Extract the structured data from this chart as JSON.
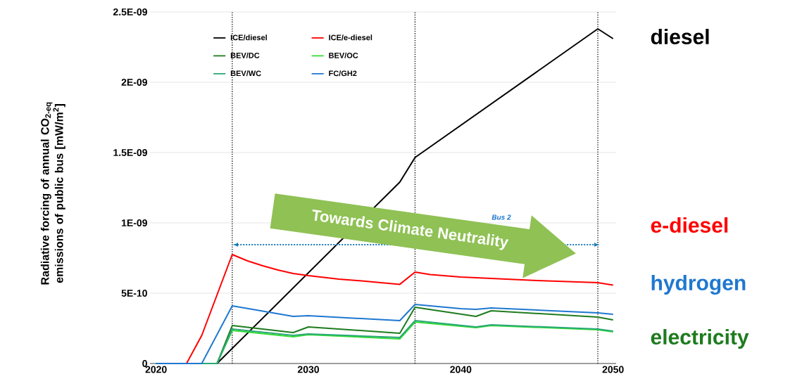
{
  "chart_data": {
    "type": "line",
    "ylabel": "Radiative forcing of annual CO$_{2-eq}$ emissions of public bus [mW/m$^{2}$]",
    "xlim": [
      2019.6,
      2050.2
    ],
    "xticks": [
      2020,
      2030,
      2040,
      2050
    ],
    "ylim": [
      0,
      2.5e-09
    ],
    "yticks": [
      {
        "value": 0,
        "label": "0"
      },
      {
        "value": 5e-10,
        "label": "5E-10"
      },
      {
        "value": 1e-09,
        "label": "1E-09"
      },
      {
        "value": 1.5e-09,
        "label": "1.5E-09"
      },
      {
        "value": 2e-09,
        "label": "2E-09"
      },
      {
        "value": 2.5e-09,
        "label": "2.5E-09"
      }
    ],
    "grid": "y",
    "legend": "top",
    "marker": "none",
    "line_style": "solid",
    "series": [
      {
        "name": "ICE/diesel",
        "color": "#000000",
        "x": [
          2020,
          2024,
          2036,
          2037,
          2049,
          2050
        ],
        "values": [
          0,
          0,
          1.29e-09,
          1.465e-09,
          2.38e-09,
          2.31e-09
        ]
      },
      {
        "name": "ICE/e-diesel",
        "color": "#ff0000",
        "x": [
          2020,
          2022,
          2023,
          2025,
          2026,
          2027,
          2028,
          2029,
          2030,
          2032,
          2034,
          2036,
          2037,
          2038,
          2040,
          2045,
          2049,
          2050
        ],
        "values": [
          0,
          0,
          2e-10,
          7.75e-10,
          7.3e-10,
          6.95e-10,
          6.65e-10,
          6.4e-10,
          6.25e-10,
          6e-10,
          5.83e-10,
          5.63e-10,
          6.5e-10,
          6.33e-10,
          6.15e-10,
          5.9e-10,
          5.75e-10,
          5.57e-10
        ]
      },
      {
        "name": "BEV/DC",
        "color": "#1e7b1e",
        "x": [
          2020,
          2024,
          2025,
          2029,
          2030,
          2036,
          2037,
          2041,
          2042,
          2049,
          2050
        ],
        "values": [
          0,
          0,
          2.7e-10,
          2.2e-10,
          2.6e-10,
          2.15e-10,
          4e-10,
          3.35e-10,
          3.75e-10,
          3.3e-10,
          3.1e-10
        ]
      },
      {
        "name": "BEV/OC",
        "color": "#33dd33",
        "x": [
          2020,
          2024,
          2025,
          2029,
          2030,
          2036,
          2037,
          2041,
          2042,
          2049,
          2050
        ],
        "values": [
          0,
          0,
          2.35e-10,
          1.9e-10,
          2.05e-10,
          1.75e-10,
          2.95e-10,
          2.55e-10,
          2.7e-10,
          2.4e-10,
          2.25e-10
        ]
      },
      {
        "name": "BEV/WC",
        "color": "#2aa876",
        "x": [
          2020,
          2024,
          2025,
          2029,
          2030,
          2036,
          2037,
          2041,
          2042,
          2049,
          2050
        ],
        "values": [
          0,
          0,
          2.45e-10,
          2e-10,
          2.1e-10,
          1.85e-10,
          3.05e-10,
          2.6e-10,
          2.75e-10,
          2.45e-10,
          2.3e-10
        ]
      },
      {
        "name": "FC/GH2",
        "color": "#1f78d0",
        "x": [
          2020,
          2023,
          2025,
          2029,
          2030,
          2036,
          2037,
          2040,
          2041,
          2042,
          2049,
          2050
        ],
        "values": [
          0,
          0,
          4.1e-10,
          3.35e-10,
          3.4e-10,
          3.05e-10,
          4.2e-10,
          3.9e-10,
          3.85e-10,
          3.95e-10,
          3.6e-10,
          3.5e-10
        ]
      }
    ],
    "ref_lines": [
      {
        "axis": "x",
        "value": 2025,
        "color": "#000000",
        "line_style": "dotted"
      },
      {
        "axis": "x",
        "value": 2037,
        "color": "#000000",
        "line_style": "dotted"
      },
      {
        "axis": "x",
        "value": 2049,
        "color": "#000000",
        "line_style": "dotted"
      }
    ],
    "annotations": [
      "Towards Climate Neutrality",
      "Bus 2",
      "diesel",
      "e-diesel",
      "hydrogen",
      "electricity"
    ]
  }
}
